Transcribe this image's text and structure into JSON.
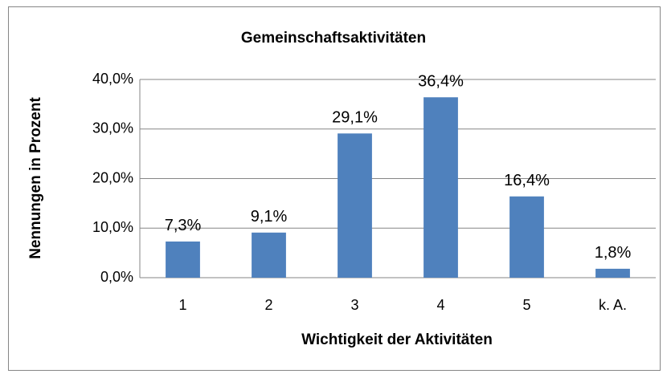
{
  "chart_data": {
    "type": "bar",
    "title": "Gemeinschaftsaktivitäten",
    "x_label": "Wichtigkeit der Aktivitäten",
    "y_label": "Nennungen in Prozent",
    "categories": [
      "1",
      "2",
      "3",
      "4",
      "5",
      "k. A."
    ],
    "values": [
      7.3,
      9.1,
      29.1,
      36.4,
      16.4,
      1.8
    ],
    "value_labels": [
      "7,3%",
      "9,1%",
      "29,1%",
      "36,4%",
      "16,4%",
      "1,8%"
    ],
    "color": "#4f81bd",
    "ylim": [
      0,
      40
    ],
    "yticks": [
      {
        "value": 0,
        "label": "0,0%"
      },
      {
        "value": 10,
        "label": "10,0%"
      },
      {
        "value": 20,
        "label": "20,0%"
      },
      {
        "value": 30,
        "label": "30,0%"
      },
      {
        "value": 40,
        "label": "40,0%"
      }
    ],
    "grid": true
  }
}
